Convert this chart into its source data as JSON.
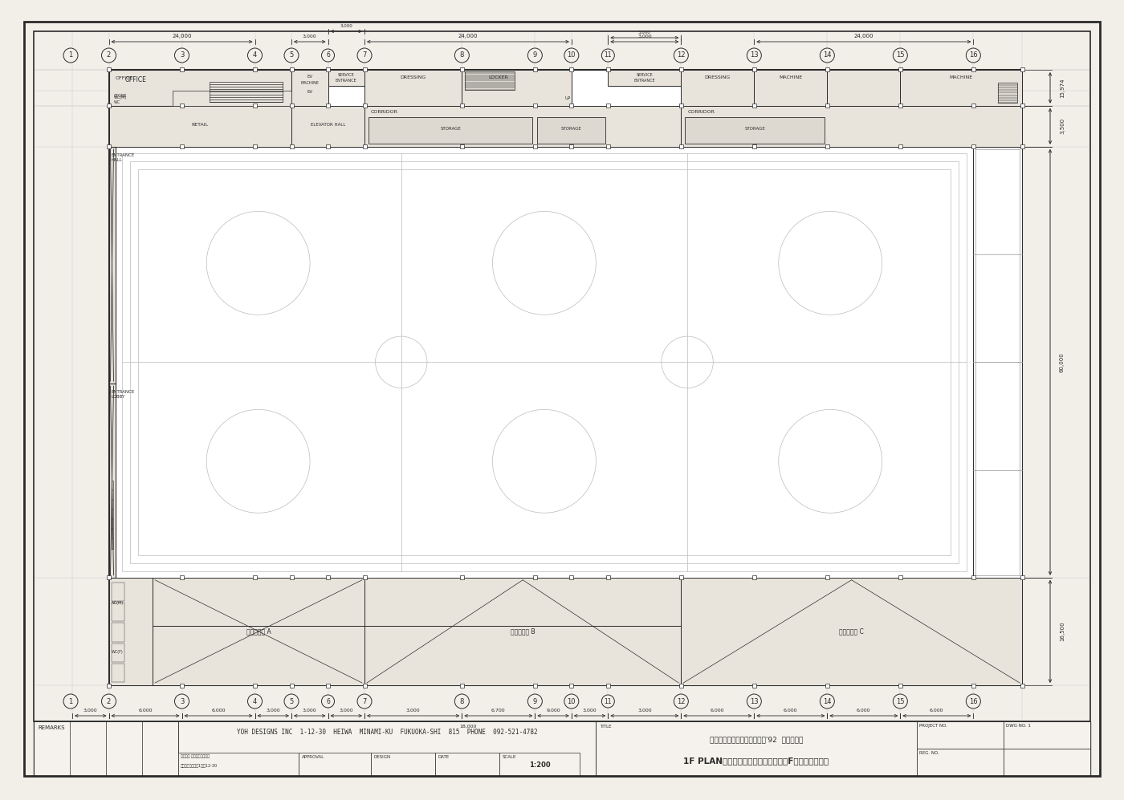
{
  "page_bg": "#f2efe9",
  "draw_bg": "#f2efe9",
  "white": "#ffffff",
  "lc": "#2a2a2a",
  "llc": "#999999",
  "vlc": "#bbbbbb",
  "gc": "#cccccc",
  "room_fill": "#e8e4dc",
  "title_text": "第１回ジャパンエキスポ富山'92  記念恒久館",
  "subtitle_text": "1F PLAN（ギャラリーデッキを含む１F花壇のプラン）",
  "firm_text": "YOH DESIGNS INC  1-12-30  HEIWA  MINAMI-KU  FUKUOKA-SHI  815  PHONE  092-521-4782",
  "scale_text": "1 : 200"
}
